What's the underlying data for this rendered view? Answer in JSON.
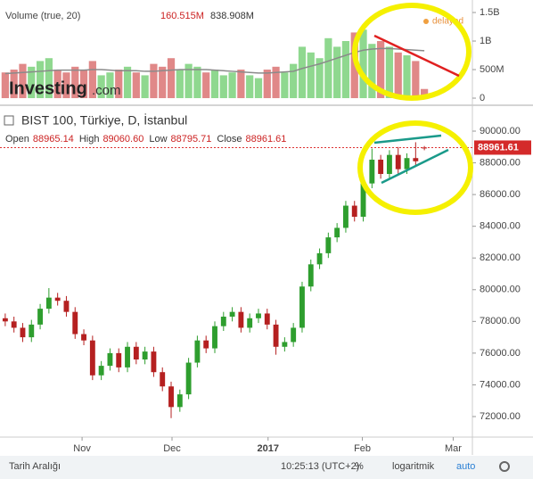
{
  "chart_data": [
    {
      "type": "bar",
      "title": "Volume (true, 20)",
      "legend_values": [
        "160.515M",
        "838.908M"
      ],
      "badge": "delayed",
      "logo": "Investing",
      "logo_suffix": ".com",
      "up_color": "#8fd88f",
      "down_color": "#e08888",
      "ma_color": "#8a8a8a",
      "values": [
        450,
        500,
        600,
        550,
        650,
        700,
        500,
        450,
        550,
        500,
        650,
        400,
        450,
        500,
        550,
        450,
        400,
        600,
        550,
        700,
        500,
        600,
        550,
        450,
        500,
        400,
        450,
        500,
        400,
        350,
        500,
        550,
        450,
        600,
        900,
        800,
        700,
        1050,
        900,
        1000,
        1150,
        1200,
        950,
        1000,
        900,
        800,
        750,
        650,
        160.515
      ],
      "ma": [
        430,
        440,
        450,
        460,
        470,
        480,
        490,
        490,
        490,
        490,
        500,
        500,
        490,
        480,
        480,
        480,
        470,
        470,
        480,
        490,
        500,
        500,
        500,
        500,
        490,
        480,
        470,
        460,
        450,
        440,
        440,
        450,
        460,
        470,
        520,
        560,
        600,
        650,
        700,
        750,
        800,
        840,
        860,
        870,
        870,
        860,
        850,
        840,
        830
      ],
      "ylim": [
        -31,
        1594
      ],
      "yticks": [
        0,
        {
          "value": 500,
          "label": "500M"
        },
        {
          "value": 1000,
          "label": "1B"
        },
        {
          "value": 1500,
          "label": "1.5B"
        }
      ]
    },
    {
      "type": "candlestick",
      "title": "BIST 100, Türkiye, D, İstanbul",
      "ohlc_legend": [
        [
          "Open",
          "88965.14"
        ],
        [
          "High",
          "89060.60"
        ],
        [
          "Low",
          "88795.71"
        ],
        [
          "Close",
          "88961.61"
        ]
      ],
      "last_label": "88961.61",
      "up_color": "#2e9e2e",
      "down_color": "#b52020",
      "open": [
        78200,
        78000,
        77600,
        77000,
        77800,
        78800,
        79500,
        79300,
        78600,
        77200,
        76800,
        74600,
        75200,
        76000,
        75100,
        76400,
        75600,
        76100,
        74800,
        73900,
        72600,
        73400,
        75400,
        76800,
        76300,
        77700,
        78300,
        78600,
        77600,
        78200,
        78500,
        77800,
        76400,
        76700,
        77600,
        80200,
        81600,
        82300,
        83300,
        83900,
        85300,
        84600,
        86700,
        88200,
        87300,
        88500,
        87600,
        88300,
        88965.14
      ],
      "high": [
        78500,
        78300,
        77900,
        78100,
        79100,
        80100,
        79800,
        79600,
        78900,
        77500,
        77100,
        75500,
        76300,
        76300,
        76700,
        76700,
        76400,
        76400,
        75100,
        74200,
        73700,
        75700,
        77100,
        77100,
        78000,
        78600,
        78900,
        78900,
        78500,
        78800,
        78800,
        78100,
        77000,
        77900,
        80500,
        81900,
        82600,
        83600,
        84200,
        85600,
        85600,
        87000,
        88900,
        88500,
        88800,
        89000,
        88600,
        89300,
        89060.6
      ],
      "low": [
        77700,
        77300,
        76700,
        76700,
        77500,
        78500,
        79000,
        78300,
        76900,
        76500,
        74300,
        74300,
        74900,
        74800,
        74800,
        75300,
        75300,
        74500,
        73600,
        71900,
        72300,
        73100,
        75100,
        76000,
        76000,
        77400,
        78000,
        77300,
        77300,
        77900,
        77500,
        75900,
        76100,
        76400,
        77300,
        79900,
        81300,
        82000,
        83000,
        83600,
        84300,
        84300,
        86400,
        87000,
        87000,
        87300,
        87300,
        87800,
        88795.71
      ],
      "close": [
        78000,
        77600,
        77000,
        77800,
        78800,
        79500,
        79300,
        78600,
        77200,
        76800,
        74600,
        75200,
        76000,
        75100,
        76400,
        75600,
        76100,
        74800,
        73900,
        72600,
        73400,
        75400,
        76800,
        76300,
        77700,
        78300,
        78600,
        77600,
        78200,
        78500,
        77800,
        76400,
        76700,
        77600,
        80200,
        81600,
        82300,
        83300,
        83900,
        85300,
        84600,
        86700,
        88200,
        87300,
        88500,
        87600,
        88300,
        88100,
        88961.61
      ],
      "xlim": [
        -0.6,
        53.5
      ],
      "xticks": [
        {
          "value": 8.8,
          "label": "Nov"
        },
        {
          "value": 19.1,
          "label": "Dec"
        },
        {
          "value": 30.1,
          "label": "2017"
        },
        {
          "value": 40.9,
          "label": "Feb"
        },
        {
          "value": 51.3,
          "label": "Mar"
        }
      ],
      "ylim": [
        70706,
        91125
      ],
      "yticks": [
        {
          "value": 72000,
          "label": "72000.00"
        },
        {
          "value": 74000,
          "label": "74000.00"
        },
        {
          "value": 76000,
          "label": "76000.00"
        },
        {
          "value": 78000,
          "label": "78000.00"
        },
        {
          "value": 80000,
          "label": "80000.00"
        },
        {
          "value": 82000,
          "label": "82000.00"
        },
        {
          "value": 84000,
          "label": "84000.00"
        },
        {
          "value": 86000,
          "label": "86000.00"
        },
        {
          "value": 88000,
          "label": "88000.00"
        },
        {
          "value": 90000,
          "label": "90000.00"
        }
      ]
    }
  ],
  "toolbar": {
    "range": "Tarih Aralığı",
    "time": "10:25:13 (UTC+2)",
    "percent": "%",
    "log": "logaritmik",
    "auto": "auto"
  }
}
